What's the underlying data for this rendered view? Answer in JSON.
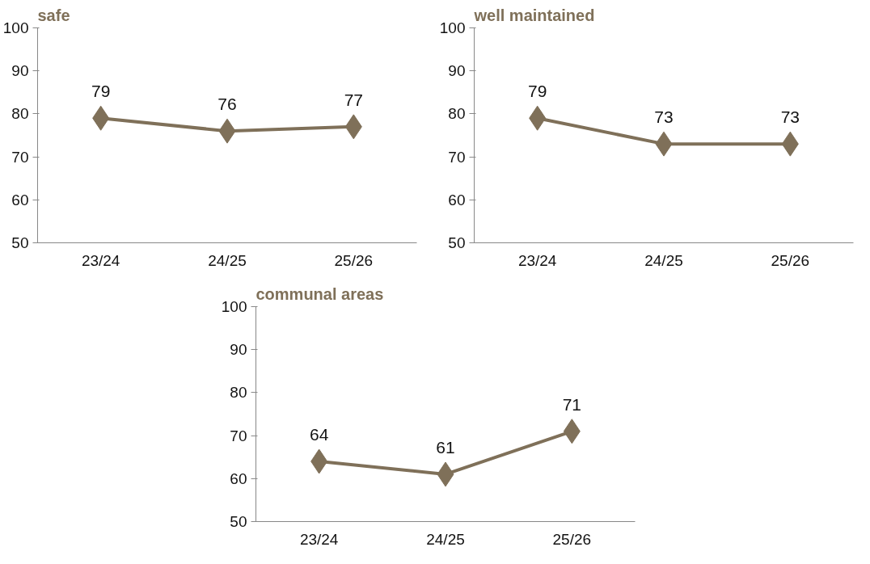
{
  "chart_data": [
    {
      "type": "line",
      "title": "safe",
      "categories": [
        "23/24",
        "24/25",
        "25/26"
      ],
      "series": [
        {
          "color": "#7f7059",
          "values": [
            79,
            76,
            77
          ]
        }
      ],
      "ylim": [
        50,
        100
      ],
      "yticks": [
        50,
        60,
        70,
        80,
        90,
        100
      ],
      "marker": "diamond",
      "data_labels": true,
      "grid": false
    },
    {
      "type": "line",
      "title": "well maintained",
      "categories": [
        "23/24",
        "24/25",
        "25/26"
      ],
      "series": [
        {
          "color": "#7f7059",
          "values": [
            79,
            73,
            73
          ]
        }
      ],
      "ylim": [
        50,
        100
      ],
      "yticks": [
        50,
        60,
        70,
        80,
        90,
        100
      ],
      "marker": "diamond",
      "data_labels": true,
      "grid": false
    },
    {
      "type": "line",
      "title": "communal areas",
      "categories": [
        "23/24",
        "24/25",
        "25/26"
      ],
      "series": [
        {
          "color": "#7f7059",
          "values": [
            64,
            61,
            71
          ]
        }
      ],
      "ylim": [
        50,
        100
      ],
      "yticks": [
        50,
        60,
        70,
        80,
        90,
        100
      ],
      "marker": "diamond",
      "data_labels": true,
      "grid": false
    }
  ]
}
